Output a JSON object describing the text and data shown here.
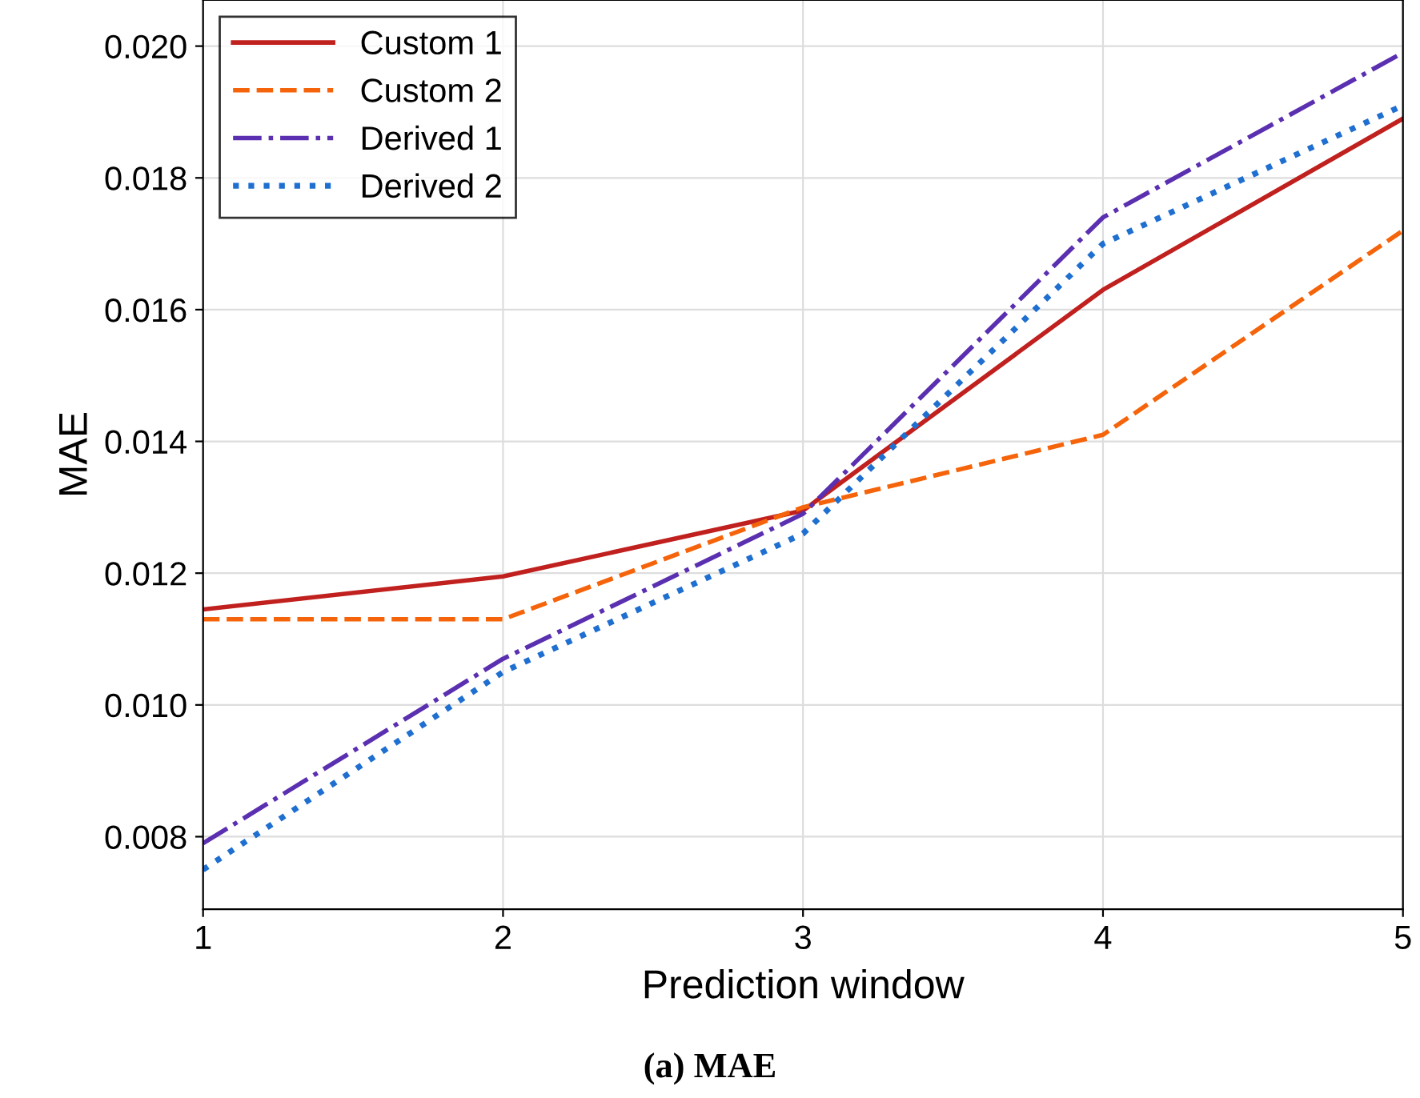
{
  "chart_data": {
    "type": "line",
    "xlabel": "Prediction window",
    "ylabel": "MAE",
    "annotations": [
      "(a) MAE"
    ],
    "x": [
      1,
      2,
      3,
      4,
      5
    ],
    "series": [
      {
        "name": "Custom 1",
        "color": "#c0201e",
        "line_style": "solid",
        "values": [
          0.01145,
          0.01195,
          0.01295,
          0.0163,
          0.0189
        ]
      },
      {
        "name": "Custom 2",
        "color": "#f5640a",
        "line_style": "dashed",
        "values": [
          0.0113,
          0.0113,
          0.013,
          0.0141,
          0.0172
        ]
      },
      {
        "name": "Derived 1",
        "color": "#5a2fb0",
        "line_style": "dashdot",
        "values": [
          0.0079,
          0.0107,
          0.0129,
          0.0174,
          0.0199
        ]
      },
      {
        "name": "Derived 2",
        "color": "#1f6fd0",
        "line_style": "dotted",
        "values": [
          0.0075,
          0.0105,
          0.0126,
          0.017,
          0.0191
        ]
      }
    ],
    "xlim": [
      1,
      5
    ],
    "xticks": [
      1,
      2,
      3,
      4,
      5
    ],
    "ylim": [
      0.0069,
      0.0207
    ],
    "yticks": [
      {
        "value": 0.008,
        "label": "0.008"
      },
      {
        "value": 0.01,
        "label": "0.010"
      },
      {
        "value": 0.012,
        "label": "0.012"
      },
      {
        "value": 0.014,
        "label": "0.014"
      },
      {
        "value": 0.016,
        "label": "0.016"
      },
      {
        "value": 0.018,
        "label": "0.018"
      },
      {
        "value": 0.02,
        "label": "0.020"
      }
    ],
    "grid": true,
    "legend": "top left",
    "marker": "none"
  }
}
